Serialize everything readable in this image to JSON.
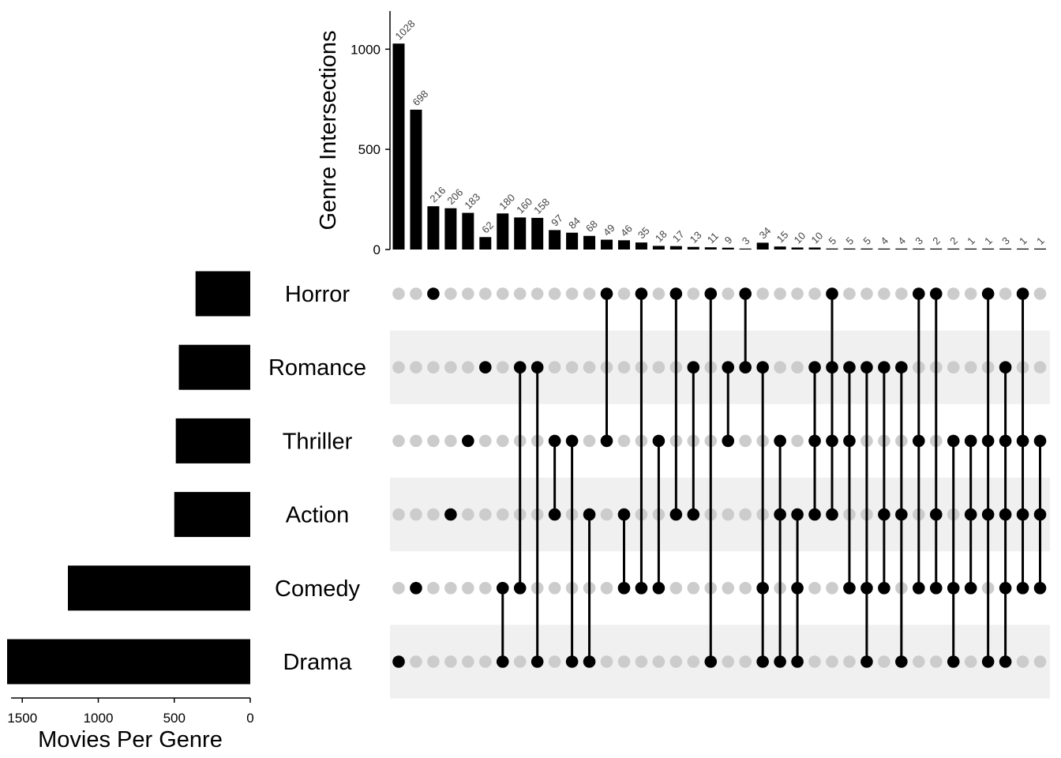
{
  "chart_data": {
    "type": "bar",
    "ylabel": "Genre Intersections",
    "xlabel": "Movies Per Genre",
    "ylim": [
      0,
      1200
    ],
    "y_ticks": [
      0,
      500,
      1000
    ],
    "set_axis_ticks": [
      1500,
      1000,
      500,
      0
    ],
    "set_axis_range": [
      1650,
      0
    ],
    "sets": [
      "Horror",
      "Romance",
      "Thriller",
      "Action",
      "Comedy",
      "Drama"
    ],
    "set_sizes": [
      360,
      470,
      490,
      500,
      1200,
      1600
    ],
    "intersection_values": [
      1028,
      698,
      216,
      206,
      183,
      62,
      180,
      160,
      158,
      97,
      84,
      68,
      49,
      46,
      35,
      18,
      17,
      13,
      11,
      9,
      3,
      34,
      15,
      10,
      10,
      5,
      5,
      5,
      4,
      4,
      3,
      2,
      2,
      1,
      1,
      3,
      1,
      1
    ],
    "intersection_labels": [
      "1028",
      "698",
      "216",
      "206",
      "183",
      "62",
      "180",
      "160",
      "158",
      "97",
      "84",
      "68",
      "49",
      "46",
      "35",
      "18",
      "17",
      "13",
      "11",
      "9",
      "3",
      "34",
      "15",
      "10",
      "10",
      "5",
      "5",
      "5",
      "4",
      "4",
      "3",
      "2",
      "2",
      "1",
      "1",
      "3",
      "1",
      "1"
    ],
    "intersection_sets": [
      [
        "Drama"
      ],
      [
        "Comedy"
      ],
      [
        "Horror"
      ],
      [
        "Action"
      ],
      [
        "Thriller"
      ],
      [
        "Romance"
      ],
      [
        "Comedy",
        "Drama"
      ],
      [
        "Romance",
        "Comedy"
      ],
      [
        "Romance",
        "Drama"
      ],
      [
        "Thriller",
        "Action"
      ],
      [
        "Thriller",
        "Drama"
      ],
      [
        "Action",
        "Drama"
      ],
      [
        "Horror",
        "Thriller"
      ],
      [
        "Action",
        "Comedy"
      ],
      [
        "Horror",
        "Comedy"
      ],
      [
        "Thriller",
        "Comedy"
      ],
      [
        "Horror",
        "Action"
      ],
      [
        "Romance",
        "Action"
      ],
      [
        "Horror",
        "Drama"
      ],
      [
        "Romance",
        "Thriller"
      ],
      [
        "Horror",
        "Romance"
      ],
      [
        "Romance",
        "Comedy",
        "Drama"
      ],
      [
        "Thriller",
        "Action",
        "Drama"
      ],
      [
        "Action",
        "Comedy",
        "Drama"
      ],
      [
        "Romance",
        "Thriller",
        "Action"
      ],
      [
        "Horror",
        "Romance",
        "Thriller",
        "Action"
      ],
      [
        "Romance",
        "Thriller",
        "Comedy"
      ],
      [
        "Romance",
        "Comedy",
        "Drama"
      ],
      [
        "Romance",
        "Action",
        "Comedy"
      ],
      [
        "Romance",
        "Action",
        "Drama"
      ],
      [
        "Horror",
        "Thriller",
        "Comedy"
      ],
      [
        "Horror",
        "Action",
        "Comedy"
      ],
      [
        "Thriller",
        "Comedy",
        "Drama"
      ],
      [
        "Thriller",
        "Action",
        "Comedy"
      ],
      [
        "Horror",
        "Thriller",
        "Action",
        "Drama"
      ],
      [
        "Romance",
        "Thriller",
        "Action",
        "Comedy",
        "Drama"
      ],
      [
        "Horror",
        "Thriller",
        "Action",
        "Comedy"
      ],
      [
        "Thriller",
        "Action",
        "Comedy"
      ]
    ],
    "colors": {
      "bar": "#000000",
      "dot_active": "#000000",
      "dot_inactive": "#cccccc",
      "stripe": "#f0f0f0",
      "value_label": "#444444"
    }
  }
}
